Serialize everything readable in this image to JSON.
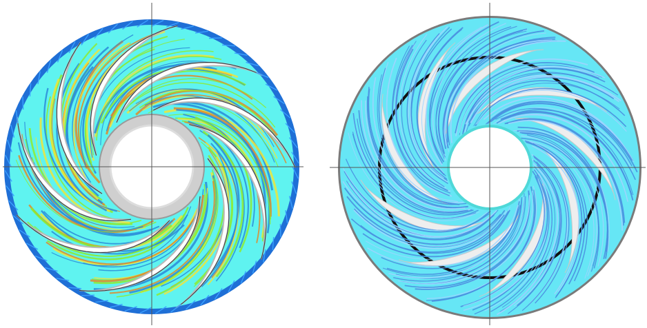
{
  "figure": {
    "panels": [
      {
        "id": "left",
        "description_name": "impeller-streamlines-velocity-colored",
        "blade_count": 9,
        "colors": {
          "outer_ring": "#1f6fd6",
          "fluid_base": "#5ff3f0",
          "streak_green": "#8fea2f",
          "streak_yellow": "#f0e43a",
          "streak_orange": "#e08a2a",
          "streak_blue": "#2a8ad8",
          "blade_gray": "#b9b9b9",
          "hub_gray": "#cfcfcf",
          "axis": "#555555"
        }
      },
      {
        "id": "right",
        "description_name": "impeller-streamlines-uniform",
        "blade_count": 9,
        "colors": {
          "outer_ring": "#7a7a7a",
          "fluid_base": "#66e6f5",
          "streak": "#4a8fe0",
          "streak_light": "#9fd4ff",
          "gap": "#eeeeee",
          "back_ring": "#111111",
          "hub_edge": "#4fd8d8",
          "axis": "#555555"
        }
      }
    ]
  }
}
